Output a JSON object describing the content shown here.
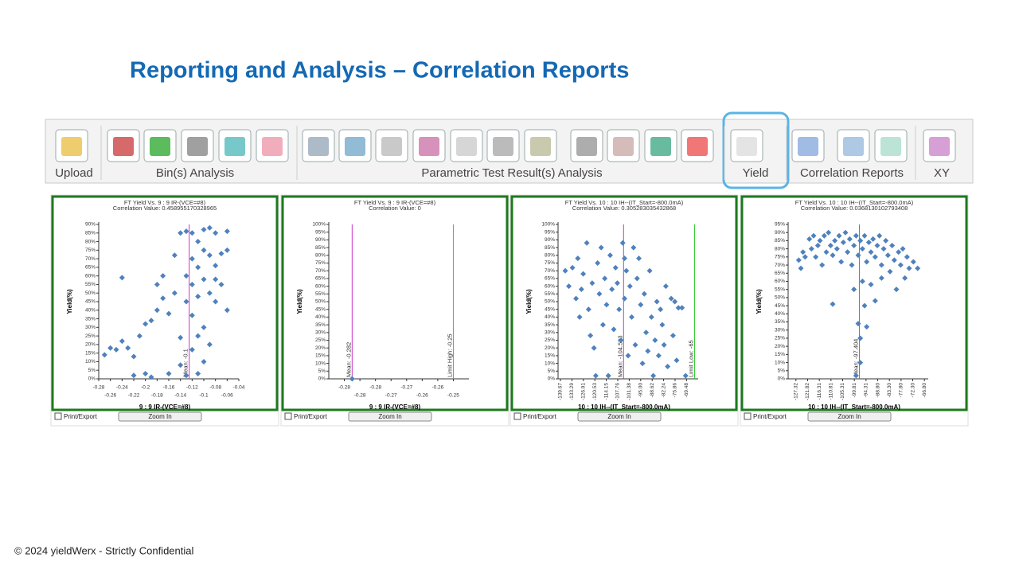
{
  "title": "Reporting and Analysis – Correlation Reports",
  "footer": "© 2024  yieldWerx - Strictly Confidential",
  "toolbar": {
    "groups": [
      "Upload",
      "Bin(s) Analysis",
      "Parametric Test Result(s) Analysis",
      "Yield",
      "Correlation Reports",
      "XY"
    ]
  },
  "controls": {
    "print": "Print/Export",
    "zoom": "Zoom In"
  },
  "chart_data": [
    {
      "type": "scatter",
      "title": "FT Yield Vs. 9 : 9 IR-(VCE=#8)",
      "subtitle": "Correlation Value: 0.458955170328965",
      "xlabel": "9 : 9 IR-(VCE=#8)",
      "ylabel": "Yield(%)",
      "color": "#4f81bd",
      "xtick_rotation": 0,
      "xlim": [
        -0.28,
        -0.04
      ],
      "ylim": [
        0,
        90
      ],
      "xticks": [
        -0.28,
        -0.26,
        -0.24,
        -0.22,
        -0.2,
        -0.18,
        -0.16,
        -0.14,
        -0.12,
        -0.1,
        -0.08,
        -0.06,
        -0.04
      ],
      "yticks": [
        {
          "value": 0,
          "label": "0%"
        },
        {
          "value": 5,
          "label": "5%"
        },
        {
          "value": 10,
          "label": "10%"
        },
        {
          "value": 15,
          "label": "15%"
        },
        {
          "value": 20,
          "label": "20%"
        },
        {
          "value": 25,
          "label": "25%"
        },
        {
          "value": 30,
          "label": "30%"
        },
        {
          "value": 35,
          "label": "35%"
        },
        {
          "value": 40,
          "label": "40%"
        },
        {
          "value": 45,
          "label": "45%"
        },
        {
          "value": 50,
          "label": "50%"
        },
        {
          "value": 55,
          "label": "55%"
        },
        {
          "value": 60,
          "label": "60%"
        },
        {
          "value": 65,
          "label": "65%"
        },
        {
          "value": 70,
          "label": "70%"
        },
        {
          "value": 75,
          "label": "75%"
        },
        {
          "value": 80,
          "label": "80%"
        },
        {
          "value": 85,
          "label": "85%"
        },
        {
          "value": 90,
          "label": "90%"
        }
      ],
      "lines": [
        {
          "value": -0.125,
          "label": "Mean: -0.1",
          "color": "#cc33cc"
        }
      ],
      "x": [
        -0.27,
        -0.26,
        -0.25,
        -0.24,
        -0.24,
        -0.23,
        -0.22,
        -0.22,
        -0.21,
        -0.2,
        -0.2,
        -0.19,
        -0.19,
        -0.18,
        -0.18,
        -0.17,
        -0.17,
        -0.16,
        -0.16,
        -0.15,
        -0.15,
        -0.14,
        -0.14,
        -0.14,
        -0.13,
        -0.13,
        -0.13,
        -0.13,
        -0.12,
        -0.12,
        -0.12,
        -0.12,
        -0.12,
        -0.11,
        -0.11,
        -0.11,
        -0.11,
        -0.11,
        -0.1,
        -0.1,
        -0.1,
        -0.1,
        -0.1,
        -0.09,
        -0.09,
        -0.09,
        -0.09,
        -0.08,
        -0.08,
        -0.08,
        -0.08,
        -0.07,
        -0.07,
        -0.06,
        -0.06,
        -0.06
      ],
      "values": [
        14,
        18,
        17,
        22,
        59,
        18,
        13,
        2,
        25,
        32,
        3,
        34,
        1,
        40,
        55,
        47,
        60,
        38,
        3,
        72,
        50,
        85,
        24,
        8,
        86,
        45,
        60,
        2,
        85,
        70,
        55,
        37,
        17,
        80,
        65,
        48,
        25,
        3,
        87,
        75,
        58,
        30,
        10,
        88,
        72,
        50,
        20,
        85,
        66,
        45,
        58,
        73,
        55,
        86,
        75,
        40
      ]
    },
    {
      "type": "scatter",
      "title": "FT Yield Vs. 9 : 9 IR-(VCE=#8)",
      "subtitle": "Correlation Value: 0",
      "xlabel": "9 : 9 IR-(VCE=#8)",
      "ylabel": "Yield(%)",
      "color": "#4f81bd",
      "xtick_rotation": 0,
      "xlim": [
        -0.29,
        -0.245
      ],
      "ylim": [
        0,
        100
      ],
      "xticks": [
        {
          "value": -0.285,
          "label": "-0.28"
        },
        {
          "value": -0.28,
          "label": "-0.28"
        },
        {
          "value": -0.275,
          "label": "-0.28"
        },
        {
          "value": -0.27,
          "label": "-0.27"
        },
        {
          "value": -0.265,
          "label": "-0.27"
        },
        {
          "value": -0.26,
          "label": "-0.26"
        },
        {
          "value": -0.255,
          "label": "-0.26"
        },
        {
          "value": -0.25,
          "label": "-0.25"
        }
      ],
      "yticks": [
        {
          "value": 0,
          "label": "0%"
        },
        {
          "value": 5,
          "label": "5%"
        },
        {
          "value": 10,
          "label": "10%"
        },
        {
          "value": 15,
          "label": "15%"
        },
        {
          "value": 20,
          "label": "20%"
        },
        {
          "value": 25,
          "label": "25%"
        },
        {
          "value": 30,
          "label": "30%"
        },
        {
          "value": 35,
          "label": "35%"
        },
        {
          "value": 40,
          "label": "40%"
        },
        {
          "value": 45,
          "label": "45%"
        },
        {
          "value": 50,
          "label": "50%"
        },
        {
          "value": 55,
          "label": "55%"
        },
        {
          "value": 60,
          "label": "60%"
        },
        {
          "value": 65,
          "label": "65%"
        },
        {
          "value": 70,
          "label": "70%"
        },
        {
          "value": 75,
          "label": "75%"
        },
        {
          "value": 80,
          "label": "80%"
        },
        {
          "value": 85,
          "label": "85%"
        },
        {
          "value": 90,
          "label": "90%"
        },
        {
          "value": 95,
          "label": "95%"
        },
        {
          "value": 100,
          "label": "100%"
        }
      ],
      "lines": [
        {
          "value": -0.2825,
          "label": "Mean: -0.282",
          "color": "#cc33cc"
        },
        {
          "value": -0.25,
          "label": "Limit High: -0.25",
          "color": "#33cc33"
        }
      ],
      "x": [
        -0.2825
      ],
      "values": [
        0
      ]
    },
    {
      "type": "scatter",
      "title": "FT Yield Vs. 10 : 10 IH--(IT_Start=-800.0mA)",
      "subtitle": "Correlation Value: 0.305283035432868",
      "xlabel": "10 : 10 IH--(IT_Start=-800.0mA)",
      "ylabel": "Yield(%)",
      "color": "#4f81bd",
      "xtick_rotation": 90,
      "xlim": [
        -141,
        -63
      ],
      "ylim": [
        0,
        100
      ],
      "xticks": [
        -139.67,
        -133.29,
        -126.91,
        -120.53,
        -114.15,
        -107.76,
        -101.38,
        {
          "value": -95,
          "label": "-95.00"
        },
        -88.62,
        -82.24,
        -75.86,
        -69.48
      ],
      "yticks": [
        {
          "value": 0,
          "label": "0%"
        },
        {
          "value": 5,
          "label": "5%"
        },
        {
          "value": 10,
          "label": "10%"
        },
        {
          "value": 15,
          "label": "15%"
        },
        {
          "value": 20,
          "label": "20%"
        },
        {
          "value": 25,
          "label": "25%"
        },
        {
          "value": 30,
          "label": "30%"
        },
        {
          "value": 35,
          "label": "35%"
        },
        {
          "value": 40,
          "label": "40%"
        },
        {
          "value": 45,
          "label": "45%"
        },
        {
          "value": 50,
          "label": "50%"
        },
        {
          "value": 55,
          "label": "55%"
        },
        {
          "value": 60,
          "label": "60%"
        },
        {
          "value": 65,
          "label": "65%"
        },
        {
          "value": 70,
          "label": "70%"
        },
        {
          "value": 75,
          "label": "75%"
        },
        {
          "value": 80,
          "label": "80%"
        },
        {
          "value": 85,
          "label": "85%"
        },
        {
          "value": 90,
          "label": "90%"
        },
        {
          "value": 95,
          "label": "95%"
        },
        {
          "value": 100,
          "label": "100%"
        }
      ],
      "lines": [
        {
          "value": -104.523,
          "label": "Mean: -104.523",
          "color": "#cc33cc"
        },
        {
          "value": -65,
          "label": "Limit Low: -65",
          "color": "#33cc33"
        }
      ],
      "x": [
        -137,
        -135,
        -133,
        -131,
        -130,
        -129,
        -128,
        -127,
        -125,
        -124,
        -123,
        -122,
        -121,
        -120,
        -119,
        -118,
        -117,
        -116,
        -115,
        -114,
        -113,
        -112,
        -111,
        -110,
        -109,
        -108,
        -107,
        -106,
        -105,
        -104,
        -104,
        -103,
        -102,
        -101,
        -100,
        -99,
        -98,
        -97,
        -96,
        -95,
        -94,
        -93,
        -92,
        -91,
        -90,
        -89,
        -88,
        -87,
        -86,
        -85,
        -84,
        -83,
        -82,
        -81,
        -80,
        -78,
        -77,
        -76,
        -75,
        -74,
        -72,
        -70
      ],
      "values": [
        70,
        60,
        72,
        52,
        78,
        40,
        58,
        68,
        88,
        45,
        28,
        62,
        20,
        2,
        75,
        55,
        85,
        35,
        65,
        48,
        2,
        80,
        58,
        32,
        72,
        62,
        45,
        25,
        88,
        78,
        52,
        70,
        15,
        60,
        40,
        85,
        22,
        65,
        78,
        48,
        10,
        55,
        30,
        18,
        70,
        40,
        2,
        25,
        50,
        15,
        45,
        35,
        22,
        60,
        8,
        52,
        28,
        50,
        12,
        46,
        46,
        2
      ]
    },
    {
      "type": "scatter",
      "title": "FT Yield Vs. 10 : 10 IH--(IT_Start=-800.0mA)",
      "subtitle": "Correlation Value: 0.0368130102793408",
      "xlabel": "10 : 10 IH--(IT_Start=-800.0mA)",
      "ylabel": "Yield(%)",
      "color": "#4f81bd",
      "xtick_rotation": 90,
      "xlim": [
        -131,
        -65
      ],
      "ylim": [
        0,
        95
      ],
      "xticks": [
        -127.32,
        -121.82,
        -116.31,
        -110.81,
        -105.31,
        -99.81,
        -94.31,
        {
          "value": -88.8,
          "label": "-88.80"
        },
        {
          "value": -83.3,
          "label": "-83.30"
        },
        {
          "value": -77.8,
          "label": "-77.80"
        },
        {
          "value": -72.3,
          "label": "-72.30"
        },
        {
          "value": -66.8,
          "label": "-66.80"
        }
      ],
      "yticks": [
        {
          "value": 0,
          "label": "0%"
        },
        {
          "value": 5,
          "label": "5%"
        },
        {
          "value": 10,
          "label": "10%"
        },
        {
          "value": 15,
          "label": "15%"
        },
        {
          "value": 20,
          "label": "20%"
        },
        {
          "value": 25,
          "label": "25%"
        },
        {
          "value": 30,
          "label": "30%"
        },
        {
          "value": 35,
          "label": "35%"
        },
        {
          "value": 40,
          "label": "40%"
        },
        {
          "value": 45,
          "label": "45%"
        },
        {
          "value": 50,
          "label": "50%"
        },
        {
          "value": 55,
          "label": "55%"
        },
        {
          "value": 60,
          "label": "60%"
        },
        {
          "value": 65,
          "label": "65%"
        },
        {
          "value": 70,
          "label": "70%"
        },
        {
          "value": 75,
          "label": "75%"
        },
        {
          "value": 80,
          "label": "80%"
        },
        {
          "value": 85,
          "label": "85%"
        },
        {
          "value": 90,
          "label": "90%"
        },
        {
          "value": 95,
          "label": "95%"
        }
      ],
      "lines": [
        {
          "value": -97.404,
          "label": "Mean: -97.404",
          "color": "#cc33cc"
        }
      ],
      "x": [
        -126,
        -125,
        -124,
        -123,
        -121,
        -120,
        -119,
        -118,
        -117,
        -116,
        -115,
        -114,
        -113,
        -112,
        -111,
        -110,
        -110,
        -109,
        -108,
        -107,
        -106,
        -105,
        -104,
        -103,
        -102,
        -101,
        -100,
        -100,
        -99,
        -98,
        -98,
        -97,
        -97,
        -96,
        -96,
        -95,
        -95,
        -94,
        -94,
        -93,
        -92,
        -92,
        -91,
        -90,
        -90,
        -89,
        -88,
        -87,
        -87,
        -86,
        -85,
        -84,
        -83,
        -82,
        -81,
        -80,
        -79,
        -78,
        -77,
        -76,
        -75,
        -74,
        -72,
        -70,
        -97,
        -99
      ],
      "values": [
        73,
        68,
        78,
        75,
        86,
        80,
        88,
        75,
        82,
        85,
        70,
        88,
        78,
        90,
        82,
        76,
        46,
        85,
        80,
        88,
        72,
        84,
        90,
        78,
        86,
        70,
        82,
        55,
        88,
        76,
        34,
        85,
        25,
        80,
        60,
        88,
        45,
        72,
        32,
        84,
        78,
        58,
        86,
        75,
        48,
        82,
        88,
        70,
        62,
        80,
        85,
        76,
        66,
        82,
        73,
        55,
        78,
        70,
        80,
        62,
        75,
        68,
        72,
        68,
        10,
        2
      ]
    }
  ]
}
